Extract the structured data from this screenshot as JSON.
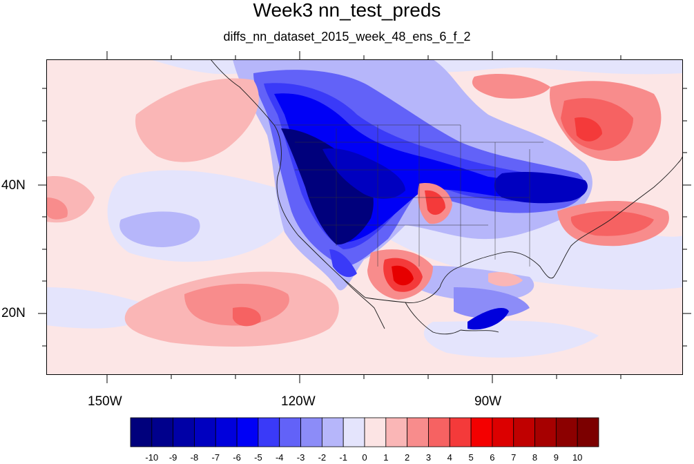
{
  "header": {
    "title": "Week3 nn_test_preds",
    "subtitle": "diffs_nn_dataset_2015_week_48_ens_6_f_2"
  },
  "map": {
    "projection": "cylindrical equidistant",
    "lon_range": [
      -159.5,
      -59.7
    ],
    "lat_range": [
      9.8,
      58.8
    ],
    "lon_tick_labels": [
      "150W",
      "120W",
      "90W"
    ],
    "lat_tick_labels": [
      "40N",
      "20N"
    ],
    "overlays": [
      "coastlines",
      "US state boundaries",
      "country boundaries"
    ],
    "field_colors": {
      "ocean_background": "#fce6e6",
      "strong_negative": "#00007c",
      "strong_positive": "#e60000"
    }
  },
  "colorbar": {
    "labels": [
      "-10",
      "-9",
      "-8",
      "-7",
      "-6",
      "-5",
      "-4",
      "-3",
      "-2",
      "-1",
      "0",
      "1",
      "2",
      "3",
      "4",
      "5",
      "6",
      "7",
      "8",
      "9",
      "10"
    ],
    "colors": [
      "#00007c",
      "#00008c",
      "#0000a6",
      "#0000c0",
      "#0000dc",
      "#0000f6",
      "#3a3af8",
      "#6262f8",
      "#8c8cf8",
      "#b6b6fa",
      "#e4e4fc",
      "#fce4e4",
      "#fab6b6",
      "#f88c8c",
      "#f66262",
      "#f43a3a",
      "#f40000",
      "#dc0000",
      "#c00000",
      "#a60000",
      "#8c0000",
      "#7c0000"
    ]
  }
}
